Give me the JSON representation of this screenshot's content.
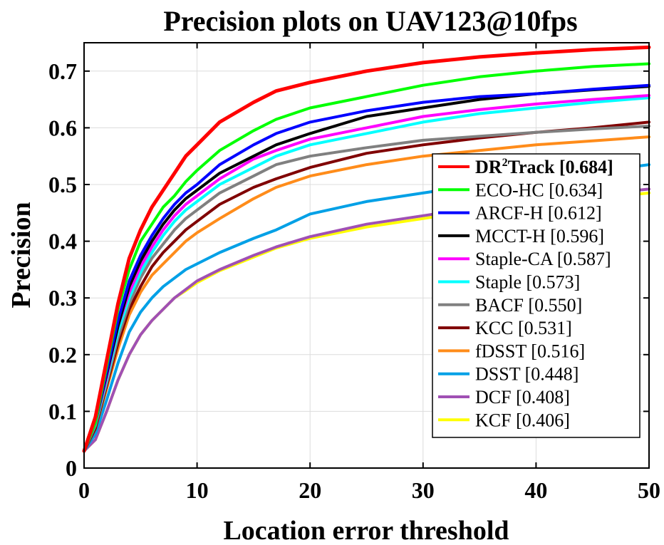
{
  "chart_data": {
    "type": "line",
    "title": "Precision plots on UAV123@10fps",
    "xlabel": "Location error threshold",
    "ylabel": "Precision",
    "xlim": [
      0,
      50
    ],
    "ylim": [
      0,
      0.75
    ],
    "xticks": [
      0,
      10,
      20,
      30,
      40,
      50
    ],
    "xtick_labels": [
      "0",
      "10",
      "20",
      "30",
      "40",
      "50"
    ],
    "yticks": [
      0,
      0.1,
      0.2,
      0.3,
      0.4,
      0.5,
      0.6,
      0.7
    ],
    "ytick_labels": [
      "0",
      "0.1",
      "0.2",
      "0.3",
      "0.4",
      "0.5",
      "0.6",
      "0.7"
    ],
    "grid": true,
    "legend_position": "bottom-right",
    "x": [
      0,
      1,
      2,
      3,
      4,
      5,
      6,
      7,
      8,
      9,
      10,
      12,
      15,
      17,
      20,
      25,
      30,
      35,
      40,
      45,
      50
    ],
    "series": [
      {
        "name": "DR",
        "name_sup": "2",
        "name_rest": "Track",
        "score": "[0.684]",
        "bold": true,
        "color": "#ff0000",
        "values": [
          0.03,
          0.09,
          0.19,
          0.29,
          0.37,
          0.42,
          0.46,
          0.49,
          0.52,
          0.55,
          0.57,
          0.61,
          0.645,
          0.665,
          0.68,
          0.7,
          0.715,
          0.725,
          0.732,
          0.738,
          0.742
        ]
      },
      {
        "name": "ECO-HC",
        "score": "[0.634]",
        "color": "#00ff00",
        "values": [
          0.03,
          0.08,
          0.18,
          0.28,
          0.35,
          0.4,
          0.43,
          0.46,
          0.48,
          0.505,
          0.525,
          0.56,
          0.595,
          0.615,
          0.635,
          0.655,
          0.675,
          0.69,
          0.7,
          0.708,
          0.713
        ]
      },
      {
        "name": "ARCF-H",
        "score": "[0.612]",
        "color": "#0000ff",
        "values": [
          0.03,
          0.08,
          0.17,
          0.26,
          0.33,
          0.375,
          0.41,
          0.44,
          0.465,
          0.485,
          0.5,
          0.535,
          0.57,
          0.59,
          0.61,
          0.63,
          0.645,
          0.655,
          0.66,
          0.668,
          0.675
        ]
      },
      {
        "name": "MCCT-H",
        "score": "[0.596]",
        "color": "#000000",
        "values": [
          0.03,
          0.08,
          0.165,
          0.25,
          0.32,
          0.365,
          0.4,
          0.43,
          0.455,
          0.475,
          0.49,
          0.52,
          0.55,
          0.57,
          0.59,
          0.62,
          0.635,
          0.65,
          0.66,
          0.667,
          0.673
        ]
      },
      {
        "name": "Staple-CA",
        "score": "[0.587]",
        "color": "#ff00ff",
        "values": [
          0.03,
          0.08,
          0.16,
          0.25,
          0.31,
          0.355,
          0.39,
          0.42,
          0.445,
          0.465,
          0.48,
          0.51,
          0.545,
          0.56,
          0.58,
          0.6,
          0.62,
          0.632,
          0.642,
          0.65,
          0.657
        ]
      },
      {
        "name": "Staple",
        "score": "[0.573]",
        "color": "#00ffff",
        "values": [
          0.03,
          0.078,
          0.155,
          0.24,
          0.3,
          0.345,
          0.38,
          0.41,
          0.435,
          0.455,
          0.47,
          0.5,
          0.53,
          0.55,
          0.57,
          0.59,
          0.61,
          0.625,
          0.635,
          0.645,
          0.653
        ]
      },
      {
        "name": "BACF",
        "score": "[0.550]",
        "color": "#808080",
        "values": [
          0.03,
          0.075,
          0.15,
          0.23,
          0.29,
          0.335,
          0.37,
          0.395,
          0.42,
          0.44,
          0.455,
          0.485,
          0.515,
          0.535,
          0.55,
          0.565,
          0.578,
          0.585,
          0.592,
          0.598,
          0.603
        ]
      },
      {
        "name": "KCC",
        "score": "[0.531]",
        "color": "#800000",
        "values": [
          0.03,
          0.07,
          0.145,
          0.22,
          0.28,
          0.32,
          0.355,
          0.38,
          0.4,
          0.42,
          0.435,
          0.465,
          0.495,
          0.51,
          0.53,
          0.555,
          0.57,
          0.582,
          0.592,
          0.6,
          0.61
        ]
      },
      {
        "name": "fDSST",
        "score": "[0.516]",
        "color": "#ff8c1a",
        "values": [
          0.03,
          0.07,
          0.14,
          0.21,
          0.27,
          0.31,
          0.34,
          0.36,
          0.38,
          0.4,
          0.415,
          0.44,
          0.475,
          0.495,
          0.515,
          0.535,
          0.55,
          0.56,
          0.57,
          0.577,
          0.584
        ]
      },
      {
        "name": "DSST",
        "score": "[0.448]",
        "color": "#00a0e6",
        "values": [
          0.03,
          0.06,
          0.12,
          0.185,
          0.24,
          0.275,
          0.3,
          0.32,
          0.335,
          0.35,
          0.36,
          0.38,
          0.405,
          0.42,
          0.448,
          0.47,
          0.485,
          0.5,
          0.51,
          0.522,
          0.535
        ]
      },
      {
        "name": "DCF",
        "score": "[0.408]",
        "color": "#a050b4",
        "values": [
          0.03,
          0.05,
          0.1,
          0.155,
          0.2,
          0.235,
          0.26,
          0.28,
          0.3,
          0.315,
          0.33,
          0.35,
          0.375,
          0.39,
          0.408,
          0.43,
          0.445,
          0.46,
          0.47,
          0.482,
          0.492
        ]
      },
      {
        "name": "KCF",
        "score": "[0.406]",
        "color": "#ffff00",
        "values": [
          0.03,
          0.05,
          0.1,
          0.155,
          0.2,
          0.235,
          0.26,
          0.28,
          0.3,
          0.313,
          0.327,
          0.348,
          0.372,
          0.388,
          0.405,
          0.425,
          0.44,
          0.455,
          0.465,
          0.475,
          0.485
        ]
      }
    ]
  }
}
